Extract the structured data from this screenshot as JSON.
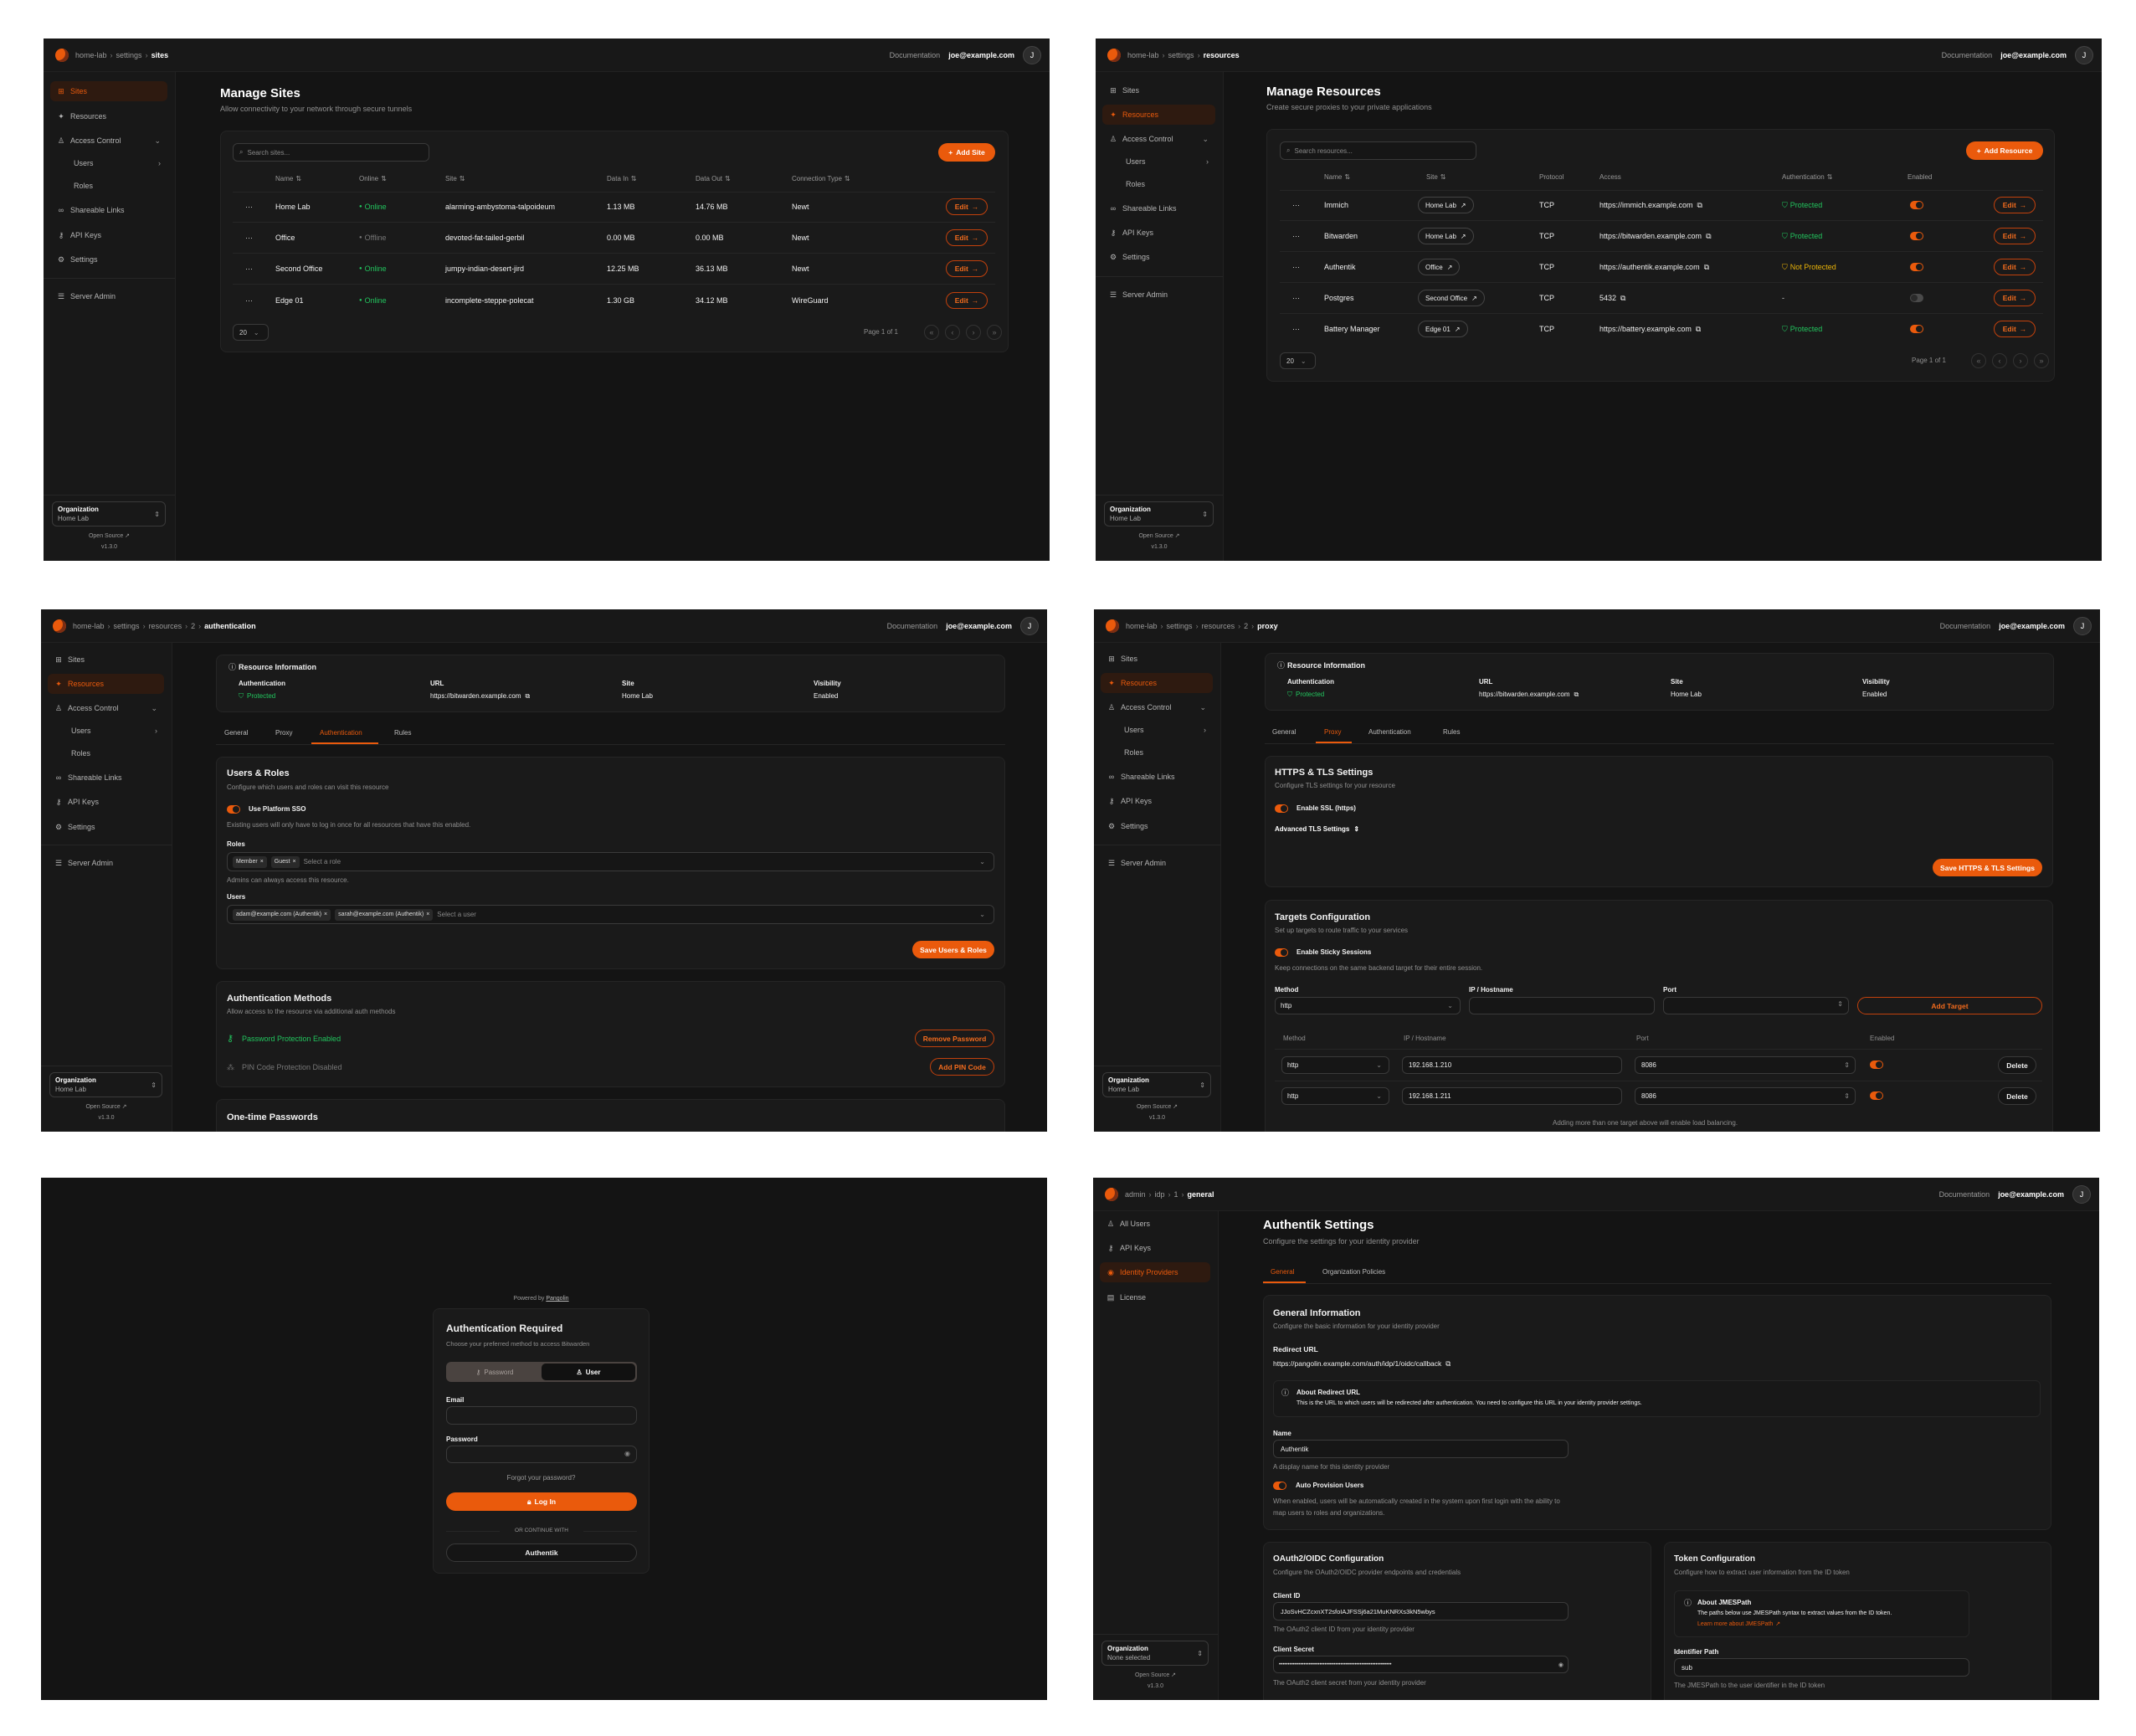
{
  "colors": {
    "accent": "#ea5a0c",
    "success": "#22c55e",
    "warning": "#eab308",
    "background": "#141414"
  },
  "common": {
    "documentation": "Documentation",
    "user_email": "joe@example.com",
    "avatar_initial": "J",
    "org_label": "Organization",
    "open_source": "Open Source",
    "version": "v1.3.0",
    "org_nav": [
      {
        "label": "Sites",
        "icon": "sites-icon"
      },
      {
        "label": "Resources",
        "icon": "resources-icon"
      },
      {
        "label": "Access Control",
        "icon": "users-icon",
        "chevron": "down"
      },
      {
        "label": "Users",
        "chevron": "right"
      },
      {
        "label": "Roles"
      },
      {
        "label": "Shareable Links",
        "icon": "link-icon"
      },
      {
        "label": "API Keys",
        "icon": "key-icon"
      },
      {
        "label": "Settings",
        "icon": "settings-icon"
      },
      {
        "label": "Server Admin",
        "icon": "server-icon"
      }
    ],
    "admin_nav": [
      {
        "label": "All Users",
        "icon": "users-icon"
      },
      {
        "label": "API Keys",
        "icon": "key-icon"
      },
      {
        "label": "Identity Providers",
        "icon": "fingerprint-icon"
      },
      {
        "label": "License",
        "icon": "license-icon"
      }
    ],
    "edit_label": "Edit",
    "page_size": "20",
    "page_label": "Page 1 of 1",
    "resource_info": {
      "title": "Resource Information",
      "fields": [
        {
          "label": "Authentication",
          "value": "Protected"
        },
        {
          "label": "URL",
          "value": "https://bitwarden.example.com"
        },
        {
          "label": "Site",
          "value": "Home Lab"
        },
        {
          "label": "Visibility",
          "value": "Enabled"
        }
      ]
    },
    "resource_tabs": [
      "General",
      "Proxy",
      "Authentication",
      "Rules"
    ]
  },
  "panels": [
    {
      "breadcrumb": [
        "home-lab",
        "settings",
        "sites"
      ],
      "active_nav": 0,
      "org_value": "Home Lab",
      "title": "Manage Sites",
      "subtitle": "Allow connectivity to your network through secure tunnels",
      "search_placeholder": "Search sites...",
      "add_button": "Add Site",
      "columns": [
        "Name",
        "Online",
        "Site",
        "Data In",
        "Data Out",
        "Connection Type"
      ],
      "rows": [
        {
          "name": "Home Lab",
          "online": "Online",
          "site": "alarming-ambystoma-talpoideum",
          "data_in": "1.13 MB",
          "data_out": "14.76 MB",
          "type": "Newt"
        },
        {
          "name": "Office",
          "online": "Offline",
          "site": "devoted-fat-tailed-gerbil",
          "data_in": "0.00 MB",
          "data_out": "0.00 MB",
          "type": "Newt"
        },
        {
          "name": "Second Office",
          "online": "Online",
          "site": "jumpy-indian-desert-jird",
          "data_in": "12.25 MB",
          "data_out": "36.13 MB",
          "type": "Newt"
        },
        {
          "name": "Edge 01",
          "online": "Online",
          "site": "incomplete-steppe-polecat",
          "data_in": "1.30 GB",
          "data_out": "34.12 MB",
          "type": "WireGuard"
        }
      ]
    },
    {
      "breadcrumb": [
        "home-lab",
        "settings",
        "resources"
      ],
      "active_nav": 1,
      "org_value": "Home Lab",
      "title": "Manage Resources",
      "subtitle": "Create secure proxies to your private applications",
      "search_placeholder": "Search resources...",
      "add_button": "Add Resource",
      "columns": [
        "Name",
        "Site",
        "Protocol",
        "Access",
        "Authentication",
        "Enabled"
      ],
      "rows": [
        {
          "name": "Immich",
          "site": "Home Lab",
          "protocol": "TCP",
          "access": "https://immich.example.com",
          "auth": "Protected",
          "enabled": true
        },
        {
          "name": "Bitwarden",
          "site": "Home Lab",
          "protocol": "TCP",
          "access": "https://bitwarden.example.com",
          "auth": "Protected",
          "enabled": true
        },
        {
          "name": "Authentik",
          "site": "Office",
          "protocol": "TCP",
          "access": "https://authentik.example.com",
          "auth": "Not Protected",
          "enabled": true
        },
        {
          "name": "Postgres",
          "site": "Second Office",
          "protocol": "TCP",
          "access": "5432",
          "auth": "-",
          "enabled": false
        },
        {
          "name": "Battery Manager",
          "site": "Edge 01",
          "protocol": "TCP",
          "access": "https://battery.example.com",
          "auth": "Protected",
          "enabled": true
        }
      ]
    },
    {
      "breadcrumb": [
        "home-lab",
        "settings",
        "resources",
        "2",
        "authentication"
      ],
      "active_nav": 1,
      "org_value": "Home Lab",
      "active_tab": 2,
      "users_roles": {
        "title": "Users & Roles",
        "desc": "Configure which users and roles can visit this resource",
        "sso_label": "Use Platform SSO",
        "sso_hint": "Existing users will only have to log in once for all resources that have this enabled.",
        "roles_label": "Roles",
        "roles": [
          "Member",
          "Guest"
        ],
        "roles_placeholder": "Select a role",
        "roles_hint": "Admins can always access this resource.",
        "users_label": "Users",
        "users": [
          "adam@example.com (Authentik)",
          "sarah@example.com (Authentik)"
        ],
        "users_placeholder": "Select a user",
        "save": "Save Users & Roles"
      },
      "auth_methods": {
        "title": "Authentication Methods",
        "desc": "Allow access to the resource via additional auth methods",
        "password_status": "Password Protection Enabled",
        "remove_password": "Remove Password",
        "pin_status": "PIN Code Protection Disabled",
        "add_pin": "Add PIN Code"
      },
      "otp_title": "One-time Passwords"
    },
    {
      "breadcrumb": [
        "home-lab",
        "settings",
        "resources",
        "2",
        "proxy"
      ],
      "active_nav": 1,
      "org_value": "Home Lab",
      "active_tab": 1,
      "tls": {
        "title": "HTTPS & TLS Settings",
        "desc": "Configure TLS settings for your resource",
        "ssl_label": "Enable SSL (https)",
        "advanced": "Advanced TLS Settings",
        "save": "Save HTTPS & TLS Settings"
      },
      "targets": {
        "title": "Targets Configuration",
        "desc": "Set up targets to route traffic to your services",
        "sticky_label": "Enable Sticky Sessions",
        "sticky_hint": "Keep connections on the same backend target for their entire session.",
        "method_label": "Method",
        "ip_label": "IP / Hostname",
        "port_label": "Port",
        "method_value": "http",
        "add": "Add Target",
        "columns": [
          "Method",
          "IP / Hostname",
          "Port",
          "Enabled"
        ],
        "rows": [
          {
            "method": "http",
            "ip": "192.168.1.210",
            "port": "8086",
            "enabled": true
          },
          {
            "method": "http",
            "ip": "192.168.1.211",
            "port": "8086",
            "enabled": true
          }
        ],
        "delete": "Delete",
        "footer": "Adding more than one target above will enable load balancing."
      }
    },
    {
      "powered_by": "Powered by",
      "pangolin": "Pangolin",
      "title": "Authentication Required",
      "subtitle": "Choose your preferred method to access Bitwarden",
      "methods": [
        "Password",
        "User"
      ],
      "active_method": 1,
      "email_label": "Email",
      "password_label": "Password",
      "forgot": "Forgot your password?",
      "login": "Log In",
      "divider": "OR CONTINUE WITH",
      "sso": "Authentik"
    },
    {
      "breadcrumb": [
        "admin",
        "idp",
        "1",
        "general"
      ],
      "active_nav": 2,
      "org_value": "None selected",
      "title": "Authentik Settings",
      "subtitle": "Configure the settings for your identity provider",
      "tabs": [
        "General",
        "Organization Policies"
      ],
      "general": {
        "title": "General Information",
        "desc": "Configure the basic information for your identity provider",
        "redirect_label": "Redirect URL",
        "redirect_url": "https://pangolin.example.com/auth/idp/1/oidc/callback",
        "about_title": "About Redirect URL",
        "about_text": "This is the URL to which users will be redirected after authentication. You need to configure this URL in your identity provider settings.",
        "name_label": "Name",
        "name_value": "Authentik",
        "name_hint": "A display name for this identity provider",
        "auto_label": "Auto Provision Users",
        "auto_hint": "When enabled, users will be automatically created in the system upon first login with the ability to map users to roles and organizations."
      },
      "oauth": {
        "title": "OAuth2/OIDC Configuration",
        "desc": "Configure the OAuth2/OIDC provider endpoints and credentials",
        "client_id_label": "Client ID",
        "client_id": "JJoSvHCZcxnXT2sfoIAJFSSj6a21MuKNRXs3kN5wbys",
        "client_id_hint": "The OAuth2 client ID from your identity provider",
        "secret_label": "Client Secret",
        "secret_masked": "••••••••••••••••••••••••••••••••••••••••••••••••••••••••••••••••",
        "secret_hint": "The OAuth2 client secret from your identity provider"
      },
      "token": {
        "title": "Token Configuration",
        "desc": "Configure how to extract user information from the ID token",
        "about_title": "About JMESPath",
        "about_text": "The paths below use JMESPath syntax to extract values from the ID token.",
        "learn_more": "Learn more about JMESPath",
        "identifier_label": "Identifier Path",
        "identifier_value": "sub",
        "identifier_hint": "The JMESPath to the user identifier in the ID token"
      }
    }
  ]
}
